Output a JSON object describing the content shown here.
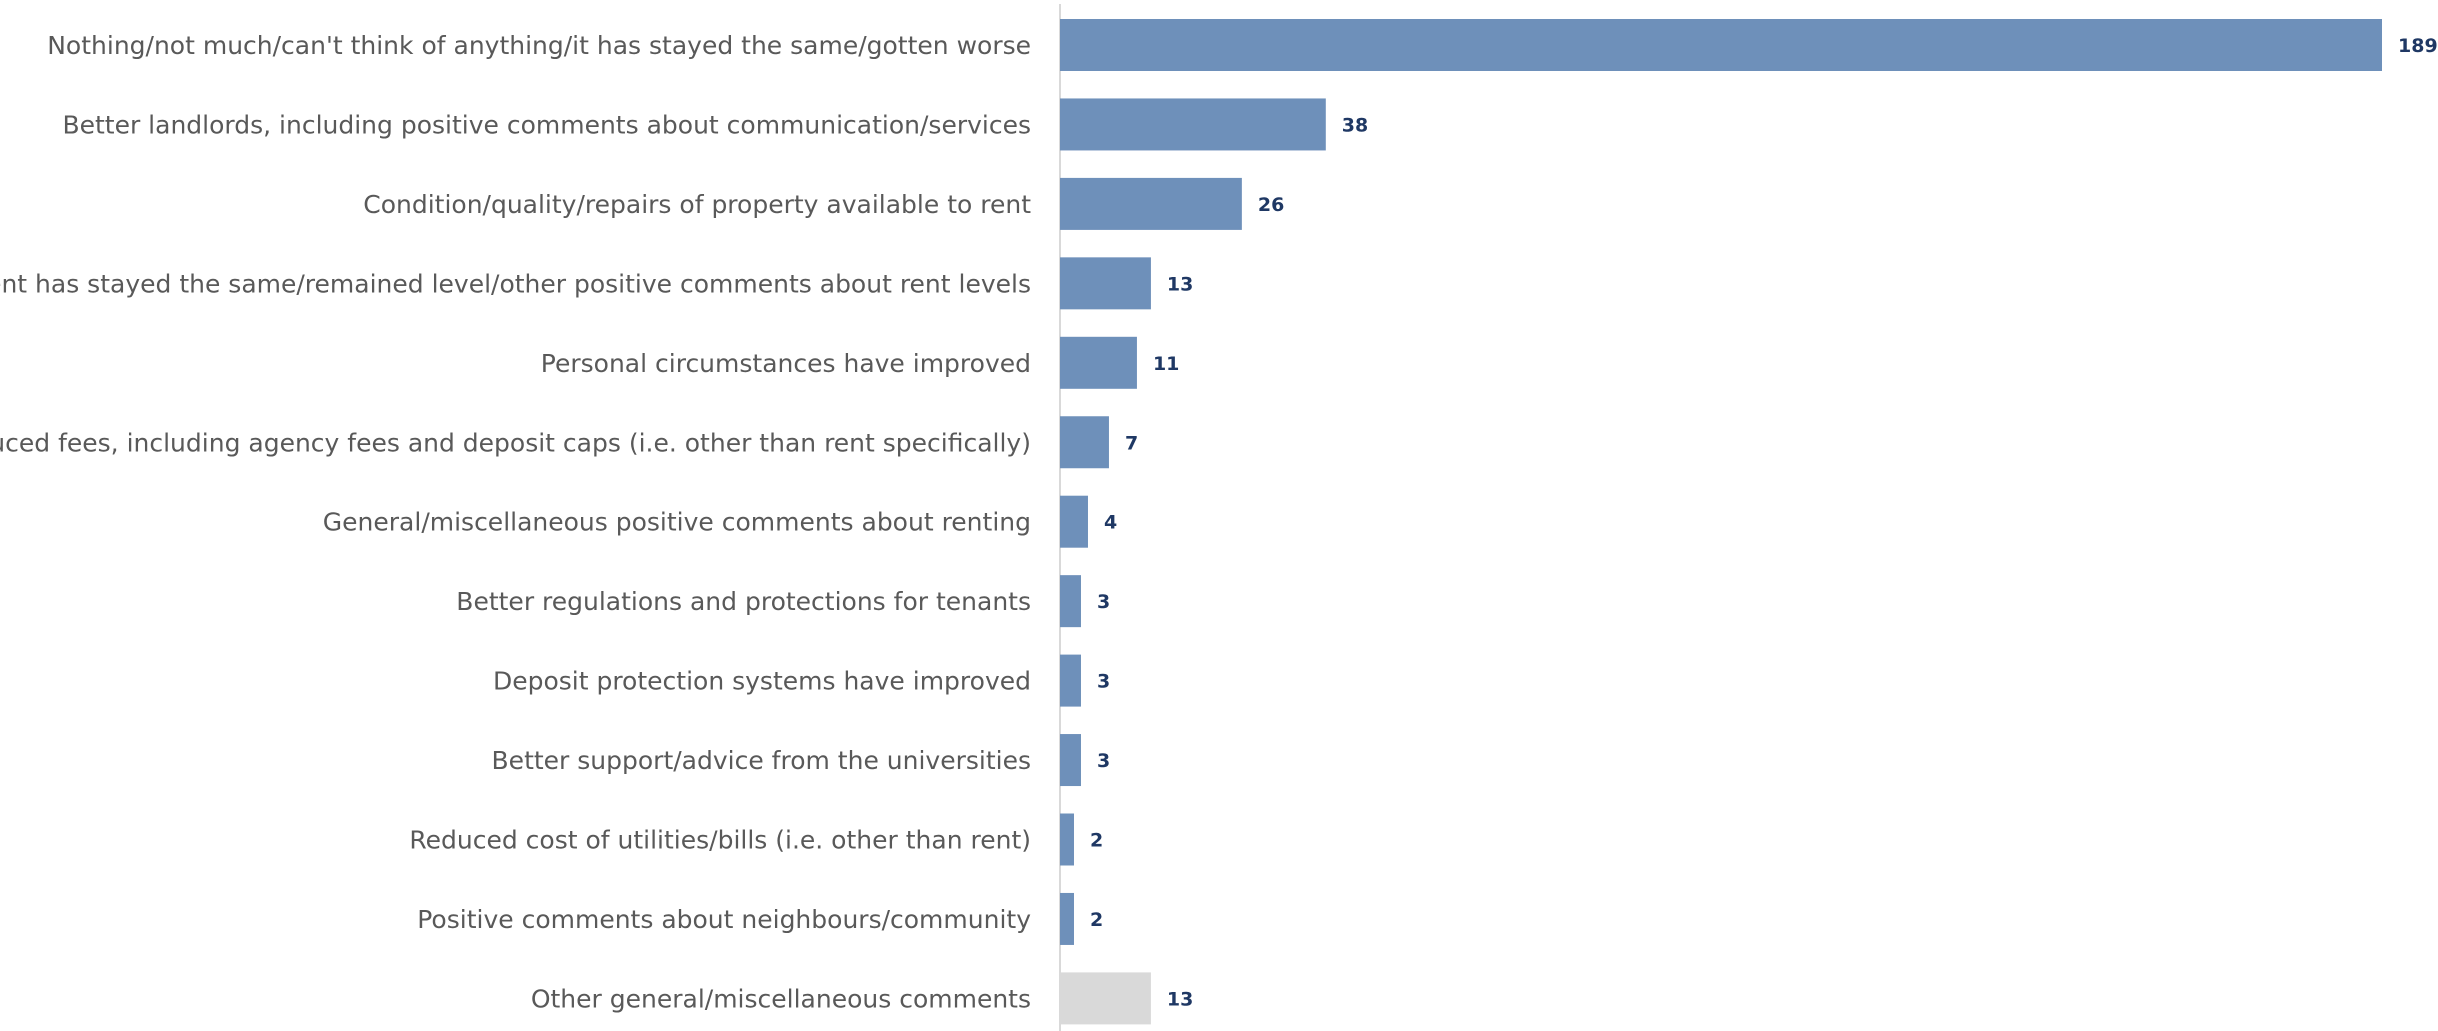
{
  "chart_data": {
    "type": "bar",
    "orientation": "horizontal",
    "categories": [
      "Nothing/not much/can't think of anything/it has stayed the same/gotten worse",
      "Better landlords, including positive comments about communication/services",
      "Condition/quality/repairs of property available to rent",
      "Rent has stayed the same/remained level/other positive comments about rent levels",
      "Personal circumstances have improved",
      "Reduced fees, including agency fees and deposit caps (i.e. other than rent specifically)",
      "General/miscellaneous positive comments about renting",
      "Better regulations and protections for tenants",
      "Deposit protection systems have improved",
      "Better support/advice from the universities",
      "Reduced cost of utilities/bills (i.e. other than rent)",
      "Positive comments about neighbours/community",
      "Other general/miscellaneous comments"
    ],
    "values": [
      189,
      38,
      26,
      13,
      11,
      7,
      4,
      3,
      3,
      3,
      2,
      2,
      13
    ],
    "value_labels": [
      "189",
      "38",
      "26",
      "13",
      "11",
      "7",
      "4",
      "3",
      "3",
      "3",
      "2",
      "2",
      "13"
    ],
    "title": "",
    "xlabel": "",
    "ylabel": "",
    "xlim": [
      0,
      189
    ],
    "grid": false,
    "legend": "none",
    "data_labels": true,
    "colors": {
      "bar": "#6e90ba",
      "bar_other": "#d9d9d9",
      "axis": "#d9d9d9",
      "category_text": "#595959",
      "value_text": "#1f3864"
    }
  }
}
